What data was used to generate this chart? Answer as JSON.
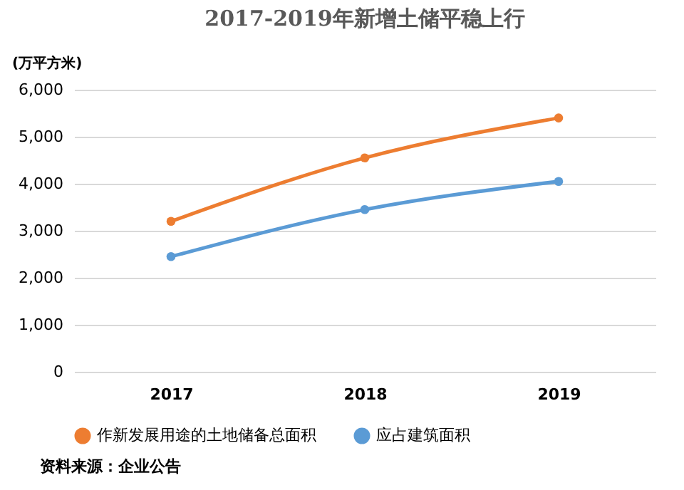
{
  "chart_data": {
    "type": "line",
    "title": "2017-2019年新增土储平稳上行",
    "ylabel": "(万平方米)",
    "categories": [
      "2017",
      "2018",
      "2019"
    ],
    "series": [
      {
        "name": "作新发展用途的土地储备总面积",
        "color": "#ed7d31",
        "values": [
          3200,
          4550,
          5400
        ]
      },
      {
        "name": "应占建筑面积",
        "color": "#5b9bd5",
        "values": [
          2450,
          3450,
          4050
        ]
      }
    ],
    "ylim": [
      0,
      6000
    ],
    "yticks": [
      0,
      {
        "value": 1000,
        "label": "1,000"
      },
      {
        "value": 2000,
        "label": "2,000"
      },
      {
        "value": 3000,
        "label": "3,000"
      },
      {
        "value": 4000,
        "label": "4,000"
      },
      {
        "value": 5000,
        "label": "5,000"
      },
      {
        "value": 6000,
        "label": "6,000"
      }
    ],
    "grid": "y",
    "legend": "bottom",
    "marker": "circle",
    "line_style": "solid",
    "annotations": [
      "资料来源：企业公告"
    ]
  }
}
